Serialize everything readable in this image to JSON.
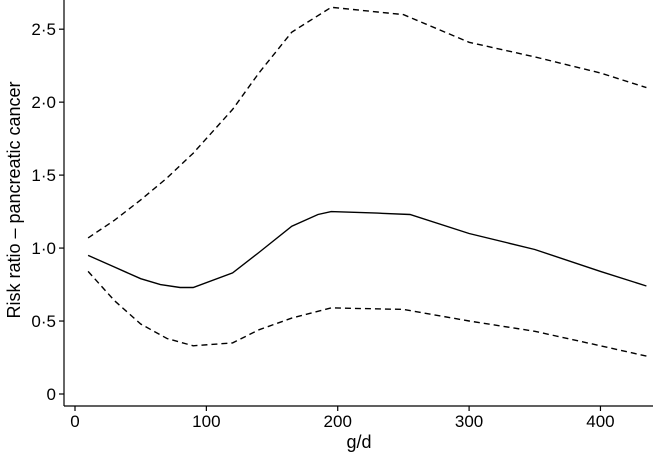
{
  "chart_data": {
    "type": "line",
    "title": "",
    "xlabel": "g/d",
    "ylabel": "Risk ratio – pancreatic cancer",
    "xlim": [
      0,
      440
    ],
    "ylim": [
      0,
      2.7
    ],
    "x_ticks": [
      0,
      100,
      200,
      300,
      400
    ],
    "x_tick_labels": [
      "0",
      "100",
      "200",
      "300",
      "400"
    ],
    "y_ticks": [
      0,
      0.5,
      1.0,
      1.5,
      2.0,
      2.5
    ],
    "y_tick_labels": [
      "0",
      "0·5",
      "1·0",
      "1·5",
      "2·0",
      "2·5"
    ],
    "grid": false,
    "legend": "none",
    "series": [
      {
        "style": "dashed",
        "x": [
          10,
          30,
          50,
          70,
          90,
          120,
          140,
          165,
          195,
          250,
          300,
          350,
          400,
          435
        ],
        "y": [
          1.07,
          1.19,
          1.33,
          1.48,
          1.65,
          1.95,
          2.2,
          2.48,
          2.65,
          2.6,
          2.41,
          2.31,
          2.2,
          2.1
        ]
      },
      {
        "style": "solid",
        "x": [
          10,
          30,
          50,
          65,
          80,
          90,
          120,
          140,
          165,
          185,
          195,
          230,
          255,
          300,
          350,
          400,
          435
        ],
        "y": [
          0.95,
          0.87,
          0.79,
          0.75,
          0.73,
          0.73,
          0.83,
          0.97,
          1.15,
          1.23,
          1.25,
          1.24,
          1.23,
          1.1,
          0.99,
          0.84,
          0.74
        ]
      },
      {
        "style": "dashed",
        "x": [
          10,
          30,
          50,
          70,
          90,
          120,
          140,
          165,
          195,
          250,
          300,
          350,
          400,
          435
        ],
        "y": [
          0.84,
          0.64,
          0.48,
          0.38,
          0.33,
          0.35,
          0.44,
          0.52,
          0.59,
          0.58,
          0.5,
          0.43,
          0.33,
          0.26
        ]
      }
    ]
  }
}
